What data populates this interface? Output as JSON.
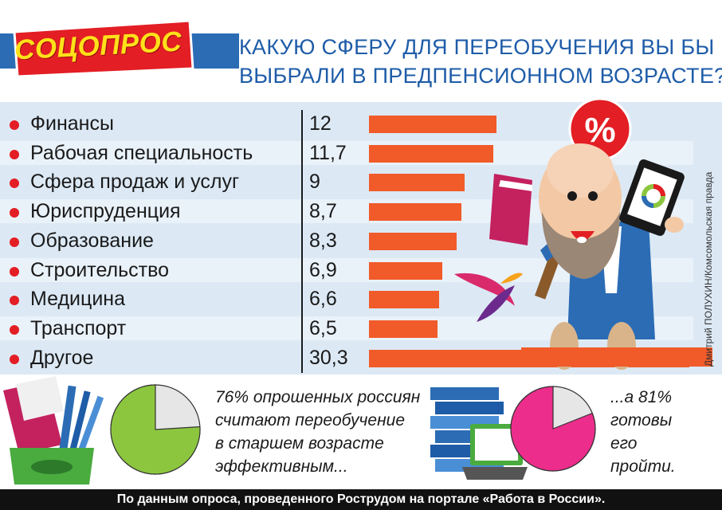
{
  "header": {
    "badge": "СОЦОПРОС",
    "title_line1": "КАКУЮ СФЕРУ ДЛЯ ПЕРЕОБУЧЕНИЯ ВЫ БЫ",
    "title_line2": "ВЫБРАЛИ В ПРЕДПЕНСИОННОМ ВОЗРАСТЕ?"
  },
  "chart_data": {
    "type": "bar",
    "orientation": "horizontal",
    "categories": [
      "Финансы",
      "Рабочая специальность",
      "Сфера продаж и услуг",
      "Юриспруденция",
      "Образование",
      "Строительство",
      "Медицина",
      "Транспорт",
      "Другое"
    ],
    "value_labels": [
      "12",
      "11,7",
      "9",
      "8,7",
      "8,3",
      "6,9",
      "6,6",
      "6,5",
      "30,3"
    ],
    "values": [
      12,
      11.7,
      9,
      8.7,
      8.3,
      6.9,
      6.6,
      6.5,
      30.3
    ],
    "bar_color": "#f15a29"
  },
  "pies": [
    {
      "value": 76,
      "color": "#8cc63f",
      "rest_color": "#e6e6e6"
    },
    {
      "value": 81,
      "color": "#ec2d8c",
      "rest_color": "#e6e6e6"
    }
  ],
  "captions": {
    "left": [
      "76% опрошенных россиян",
      "считают переобучение",
      "в старшем возрасте",
      "эффективным..."
    ],
    "right": [
      "...а 81%",
      "готовы",
      "его",
      "пройти."
    ]
  },
  "percent_badge": "%",
  "byline": "Дмитрий ПОЛУХИН/Комсомольская правда",
  "footer": "По данным опроса, проведенного Рострудом на портале «Работа в России».",
  "colors": {
    "accent_red": "#e31e24",
    "title_blue": "#1e5ca8",
    "row_band": "#dce9f5",
    "badge_yellow": "#ffe11a"
  }
}
